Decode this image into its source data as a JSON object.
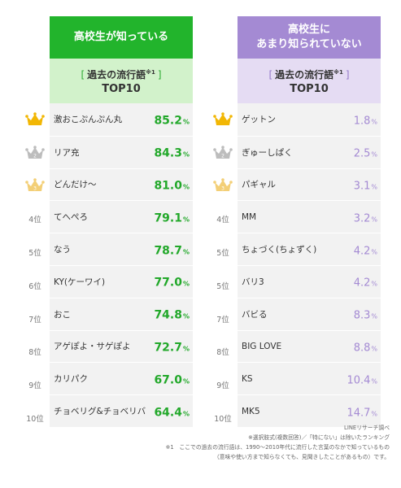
{
  "left": {
    "title_line1": "高校生が知っている",
    "title_line2": "",
    "sub_open": "[",
    "sub_label": "過去の流行語",
    "sub_mark": "※1",
    "sub_close": "]",
    "sub2": "TOP10",
    "accent_color": "#22b42c",
    "rows": [
      {
        "rank": "",
        "rank_icon": "gold-crown-icon",
        "word": "激おこぷんぷん丸",
        "value": "85.2",
        "unit": "%"
      },
      {
        "rank": "2",
        "rank_icon": "silver-crown-icon",
        "word": "リア充",
        "value": "84.3",
        "unit": "%"
      },
      {
        "rank": "3",
        "rank_icon": "bronze-crown-icon",
        "word": "どんだけ～",
        "value": "81.0",
        "unit": "%"
      },
      {
        "rank": "4位",
        "word": "てへぺろ",
        "value": "79.1",
        "unit": "%"
      },
      {
        "rank": "5位",
        "word": "なう",
        "value": "78.7",
        "unit": "%"
      },
      {
        "rank": "6位",
        "word": "KY(ケーワイ)",
        "value": "77.0",
        "unit": "%"
      },
      {
        "rank": "7位",
        "word": "おこ",
        "value": "74.8",
        "unit": "%"
      },
      {
        "rank": "8位",
        "word": "アゲぽよ・サゲぽよ",
        "value": "72.7",
        "unit": "%"
      },
      {
        "rank": "9位",
        "word": "カリパク",
        "value": "67.0",
        "unit": "%"
      },
      {
        "rank": "10位",
        "word": "チョベリグ&チョベリバ",
        "value": "64.4",
        "unit": "%"
      }
    ]
  },
  "right": {
    "title_line1": "高校生に",
    "title_line2": "あまり知られていない",
    "sub_open": "[",
    "sub_label": "過去の流行語",
    "sub_mark": "※1",
    "sub_close": "]",
    "sub2": "TOP10",
    "accent_color": "#a48ad3",
    "rows": [
      {
        "rank": "",
        "rank_icon": "gold-crown-icon",
        "word": "ゲットン",
        "value": "1.8",
        "unit": "%"
      },
      {
        "rank": "2",
        "rank_icon": "silver-crown-icon",
        "word": "ぎゅーしぱく",
        "value": "2.5",
        "unit": "%"
      },
      {
        "rank": "3",
        "rank_icon": "bronze-crown-icon",
        "word": "パギャル",
        "value": "3.1",
        "unit": "%"
      },
      {
        "rank": "4位",
        "word": "MM",
        "value": "3.2",
        "unit": "%"
      },
      {
        "rank": "5位",
        "word": "ちょづく(ちょずく)",
        "value": "4.2",
        "unit": "%"
      },
      {
        "rank": "5位",
        "word": "バリ3",
        "value": "4.2",
        "unit": "%"
      },
      {
        "rank": "7位",
        "word": "バビる",
        "value": "8.3",
        "unit": "%"
      },
      {
        "rank": "8位",
        "word": "BIG LOVE",
        "value": "8.8",
        "unit": "%"
      },
      {
        "rank": "9位",
        "word": "KS",
        "value": "10.4",
        "unit": "%"
      },
      {
        "rank": "10位",
        "word": "MK5",
        "value": "14.7",
        "unit": "%"
      }
    ]
  },
  "notes": {
    "source": "LINEリサーチ調べ",
    "note1": "※選択肢式(複数回答)／「特にない」は除いたランキング",
    "note2": "※1　ここでの過去の流行語は、1990～2010年代に流行した言葉のなかで知っているもの",
    "note3": "（意味や使い方まで知らなくても、見聞きしたことがあるもの）です。"
  },
  "colors": {
    "gold": "#f2b705",
    "silver": "#bdbdbd",
    "bronze": "#f3cf77"
  }
}
